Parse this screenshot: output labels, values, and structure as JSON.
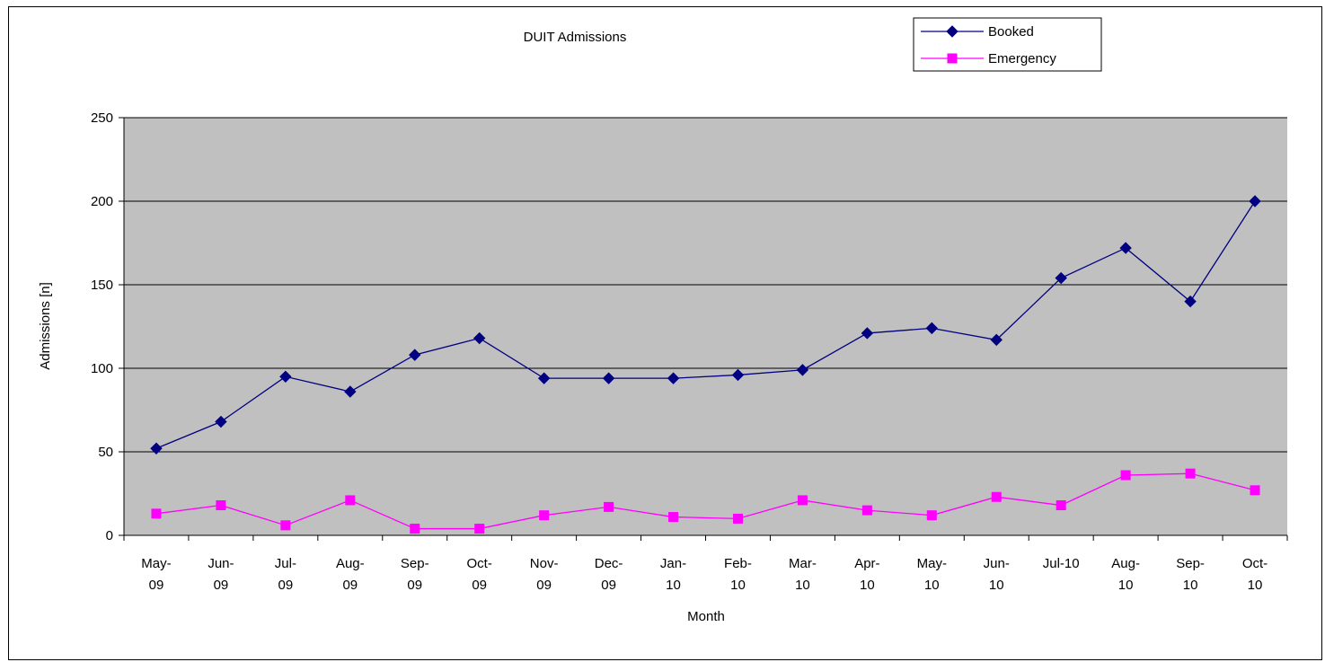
{
  "chart_data": {
    "type": "line",
    "title": "DUIT Admissions",
    "xlabel": "Month",
    "ylabel": "Admissions [n]",
    "ylim": [
      0,
      250
    ],
    "yticks": [
      "0",
      "50",
      "100",
      "150",
      "200",
      "250"
    ],
    "grid": true,
    "legend_position": "top-right",
    "categories": [
      [
        "May-",
        "09"
      ],
      [
        "Jun-",
        "09"
      ],
      [
        "Jul-",
        "09"
      ],
      [
        "Aug-",
        "09"
      ],
      [
        "Sep-",
        "09"
      ],
      [
        "Oct-",
        "09"
      ],
      [
        "Nov-",
        "09"
      ],
      [
        "Dec-",
        "09"
      ],
      [
        "Jan-",
        "10"
      ],
      [
        "Feb-",
        "10"
      ],
      [
        "Mar-",
        "10"
      ],
      [
        "Apr-",
        "10"
      ],
      [
        "May-",
        "10"
      ],
      [
        "Jun-",
        "10"
      ],
      [
        "Jul-10",
        ""
      ],
      [
        "Aug-",
        "10"
      ],
      [
        "Sep-",
        "10"
      ],
      [
        "Oct-",
        "10"
      ]
    ],
    "series": [
      {
        "name": "Booked",
        "color": "#000080",
        "marker": "diamond",
        "values": [
          52,
          68,
          95,
          86,
          108,
          118,
          94,
          94,
          94,
          96,
          99,
          121,
          124,
          117,
          154,
          172,
          140,
          200
        ]
      },
      {
        "name": "Emergency",
        "color": "#ff00ff",
        "marker": "square",
        "values": [
          13,
          18,
          6,
          21,
          4,
          4,
          12,
          17,
          11,
          10,
          21,
          15,
          12,
          23,
          18,
          36,
          37,
          27
        ]
      }
    ],
    "plot_background": "#c0c0c0"
  }
}
